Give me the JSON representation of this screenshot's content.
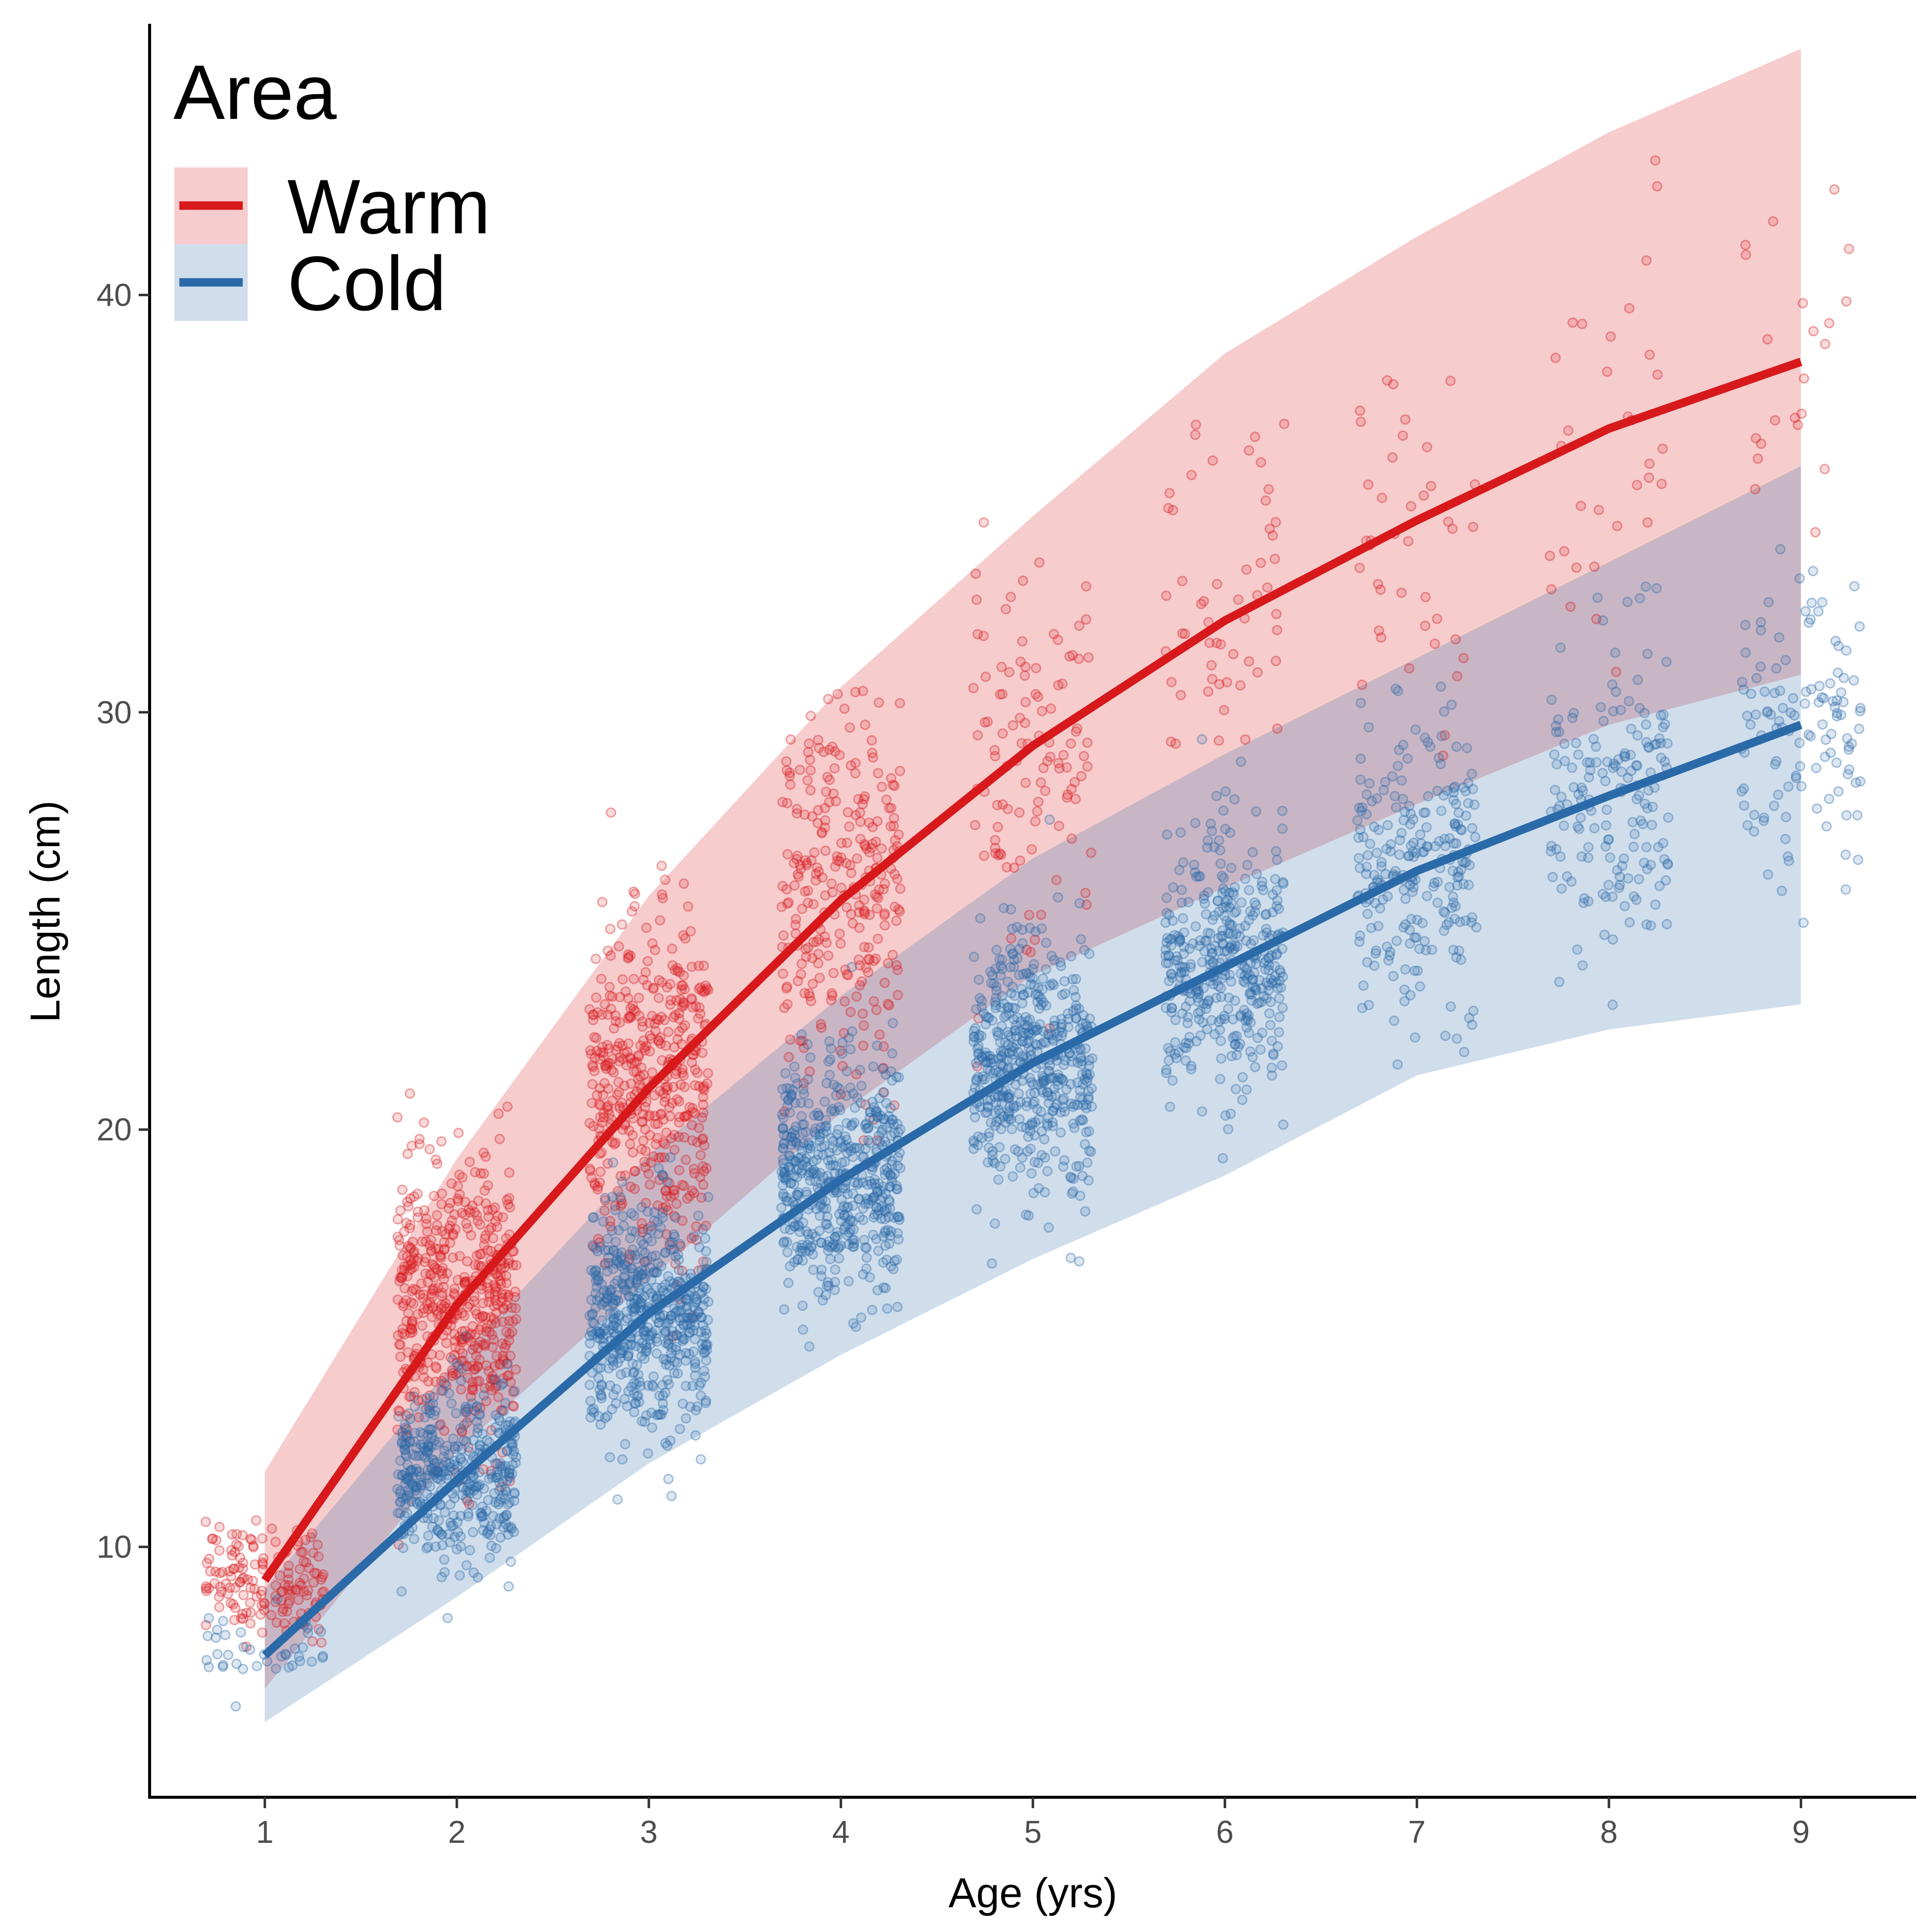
{
  "chart_data": {
    "type": "line",
    "xlabel": "Age (yrs)",
    "ylabel": "Length (cm)",
    "xlim": [
      0.4,
      9.6
    ],
    "ylim": [
      4.0,
      46.5
    ],
    "x_ticks": [
      "1",
      "2",
      "3",
      "4",
      "5",
      "6",
      "7",
      "8",
      "9"
    ],
    "y_ticks": [
      "10",
      "20",
      "30",
      "40"
    ],
    "grid": false,
    "legend": {
      "title": "Area",
      "position": "top-left"
    },
    "x": [
      1,
      2,
      3,
      4,
      5,
      6,
      7,
      8,
      9
    ],
    "series": [
      {
        "name": "Warm",
        "color": "#d7191c",
        "fit": [
          9.2,
          15.8,
          21.0,
          25.5,
          29.2,
          32.2,
          34.6,
          36.8,
          38.4
        ],
        "band_upper": [
          11.8,
          19.3,
          25.6,
          30.6,
          34.7,
          38.6,
          41.4,
          43.9,
          45.9
        ],
        "band_lower": [
          6.6,
          12.3,
          16.4,
          20.4,
          23.7,
          25.8,
          27.8,
          29.7,
          30.9
        ],
        "points_spread": [
          1.2,
          3.0,
          3.8,
          4.0,
          4.2,
          4.3,
          4.4,
          4.5,
          4.5
        ]
      },
      {
        "name": "Cold",
        "color": "#2b6aa8",
        "fit": [
          7.4,
          11.6,
          15.6,
          18.8,
          21.6,
          23.9,
          26.2,
          28.0,
          29.7
        ],
        "band_upper": [
          9.0,
          14.5,
          19.4,
          23.2,
          26.5,
          29.0,
          31.3,
          33.6,
          35.9
        ],
        "band_lower": [
          5.8,
          8.8,
          12.0,
          14.6,
          16.9,
          18.9,
          21.3,
          22.4,
          23.0
        ],
        "points_spread": [
          0.9,
          2.0,
          2.4,
          2.6,
          2.8,
          3.0,
          3.1,
          3.3,
          3.4
        ]
      }
    ]
  }
}
